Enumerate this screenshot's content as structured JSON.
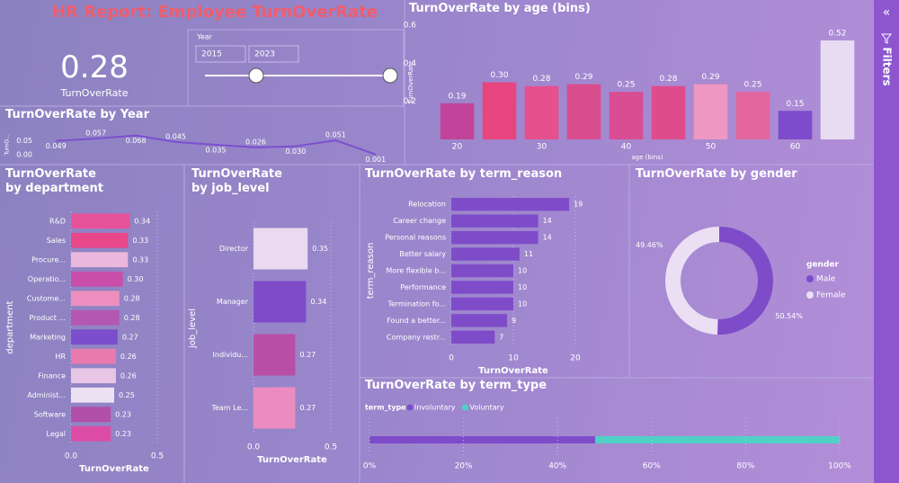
{
  "header": {
    "title": "HR Report: Employee TurnOverRate"
  },
  "kpi": {
    "value": 0.28,
    "label": "TurnOverRate"
  },
  "slicer": {
    "label": "Year",
    "from": 2015,
    "to": 2023
  },
  "filters_pane": {
    "label": "Filters"
  },
  "chart_data": [
    {
      "type": "bar",
      "title": "TurnOverRate by age (bins)",
      "x_label": "age (bins)",
      "y_label": "TurnOverRate",
      "x": [
        20,
        25,
        30,
        35,
        40,
        45,
        50,
        55,
        60,
        65
      ],
      "values": [
        0.19,
        0.3,
        0.28,
        0.29,
        0.25,
        0.28,
        0.29,
        0.25,
        0.15,
        0.52
      ],
      "value_labels": [
        "0.19",
        "0.30",
        "0.28",
        "0.29",
        "0.25",
        "0.28",
        "0.29",
        "0.25",
        "0.15",
        "0.52"
      ],
      "colors": [
        "#c2449a",
        "#e8457f",
        "#e6508d",
        "#d94c8e",
        "#d94d93",
        "#e04b8c",
        "#ed97c2",
        "#e3669e",
        "#7c4ccc",
        "#e8dcf2"
      ],
      "xlim": [
        17.5,
        67.5
      ],
      "xticks": [
        20,
        30,
        40,
        50,
        60
      ],
      "ylim": [
        0,
        0.6
      ],
      "yticks": [
        0.2,
        0.4,
        0.6
      ]
    },
    {
      "type": "line",
      "title": "TurnOverRate by Year",
      "y_label": "TurnO...",
      "color": "#7d4fd0",
      "values": [
        0.049,
        0.057,
        0.068,
        0.045,
        0.035,
        0.026,
        0.03,
        0.051,
        0.001
      ],
      "value_labels": [
        "0.049",
        "0.057",
        "0.068",
        "0.045",
        "0.035",
        "0.026",
        "0.030",
        "0.051",
        "0.001"
      ],
      "ylim": [
        0,
        0.07
      ],
      "yticks": [
        {
          "value": 0,
          "label": "0.00"
        },
        {
          "value": 0.05,
          "label": "0.05"
        }
      ]
    },
    {
      "type": "hbar",
      "title": "TurnOverRate by department",
      "x_label": "TurnOverRate",
      "y_label": "department",
      "categories": [
        "R&D",
        "Sales",
        "Procure...",
        "Operatio...",
        "Custome...",
        "Product ...",
        "Marketing",
        "HR",
        "Finance",
        "Administ...",
        "Software",
        "Legal"
      ],
      "values": [
        0.34,
        0.33,
        0.33,
        0.3,
        0.28,
        0.28,
        0.27,
        0.26,
        0.26,
        0.25,
        0.23,
        0.23
      ],
      "value_labels": [
        "0.34",
        "0.33",
        "0.33",
        "0.30",
        "0.28",
        "0.28",
        "0.27",
        "0.26",
        "0.26",
        "0.25",
        "0.23",
        "0.23"
      ],
      "colors": [
        "#e6529a",
        "#e8478a",
        "#eab8dc",
        "#c94ea9",
        "#ec8fbf",
        "#b457b0",
        "#7b4ecb",
        "#e97aae",
        "#e9c6e6",
        "#ece2f3",
        "#b24fa8",
        "#dc4ca6"
      ],
      "xlim": [
        0,
        0.5
      ],
      "xticks": [
        {
          "value": 0,
          "label": "0.0"
        },
        0.5
      ],
      "grid": true
    },
    {
      "type": "hbar",
      "title": "TurnOverRate by job_level",
      "x_label": "TurnOverRate",
      "y_label": "job_level",
      "categories": [
        "Director",
        "Manager",
        "Individu...",
        "Team Le..."
      ],
      "values": [
        0.35,
        0.34,
        0.27,
        0.27
      ],
      "colors": [
        "#ead9f0",
        "#7e4cc9",
        "#b94ea6",
        "#ea8cbf"
      ],
      "xlim": [
        0,
        0.5
      ],
      "xticks": [
        {
          "value": 0,
          "label": "0.0"
        },
        0.5
      ],
      "grid": true
    },
    {
      "type": "hbar",
      "title": "TurnOverRate by term_reason",
      "x_label": "TurnOverRate",
      "y_label": "term_reason",
      "categories": [
        "Relocation",
        "Career change",
        "Personal reasons",
        "Better salary",
        "More flexible b...",
        "Performance",
        "Termination fo...",
        "Found a better...",
        "Company restr..."
      ],
      "values": [
        19,
        14,
        14,
        11,
        10,
        10,
        10,
        9,
        7
      ],
      "colors": [
        "#7e4cc9",
        "#7e4cc9",
        "#7e4cc9",
        "#7e4cc9",
        "#7e4cc9",
        "#7e4cc9",
        "#7e4cc9",
        "#7e4cc9",
        "#7e4cc9"
      ],
      "xlim": [
        0,
        20
      ],
      "xticks": [
        0,
        10,
        20
      ],
      "grid": true
    },
    {
      "type": "donut",
      "title": "TurnOverRate by gender",
      "legend_title": "gender",
      "series": [
        {
          "name": "Male",
          "color": "#7e4cc9",
          "values": [
            50.54
          ],
          "value_labels": [
            "50.54%"
          ]
        },
        {
          "name": "Female",
          "color": "#ebdff4",
          "values": [
            49.46
          ],
          "value_labels": [
            "49.46%"
          ]
        }
      ]
    },
    {
      "type": "stacked_hbar",
      "title": "TurnOverRate by term_type",
      "legend_title": "term_type",
      "series": [
        {
          "name": "Involuntary",
          "color": "#7e4cc9",
          "values": [
            48
          ]
        },
        {
          "name": "Voluntary",
          "color": "#4fd1c5",
          "values": [
            52
          ]
        }
      ],
      "xlim": [
        0,
        100
      ],
      "xticks": [
        {
          "value": 0,
          "label": "0%"
        },
        {
          "value": 20,
          "label": "20%"
        },
        {
          "value": 40,
          "label": "40%"
        },
        {
          "value": 60,
          "label": "60%"
        },
        {
          "value": 80,
          "label": "80%"
        },
        {
          "value": 100,
          "label": "100%"
        }
      ]
    }
  ]
}
